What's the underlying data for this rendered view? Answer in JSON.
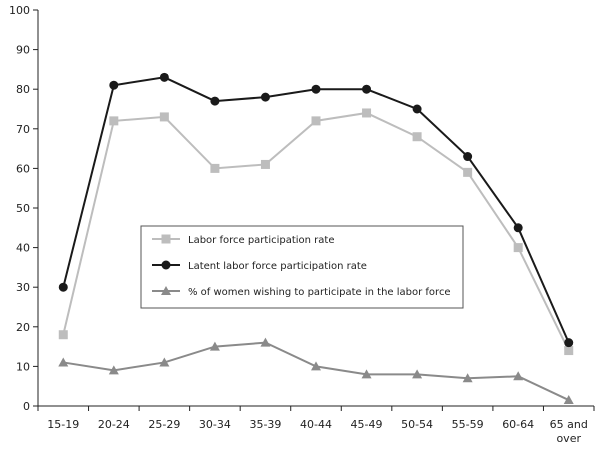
{
  "chart_data": {
    "type": "line",
    "title": "",
    "xlabel": "",
    "ylabel": "",
    "categories": [
      "15-19",
      "20-24",
      "25-29",
      "30-34",
      "35-39",
      "40-44",
      "45-49",
      "50-54",
      "55-59",
      "60-64",
      "65 and over"
    ],
    "category_lines": [
      [
        "15-19"
      ],
      [
        "20-24"
      ],
      [
        "25-29"
      ],
      [
        "30-34"
      ],
      [
        "35-39"
      ],
      [
        "40-44"
      ],
      [
        "45-49"
      ],
      [
        "50-54"
      ],
      [
        "55-59"
      ],
      [
        "60-64"
      ],
      [
        "65 and",
        "over"
      ]
    ],
    "ylim": [
      0,
      100
    ],
    "yticks": [
      0,
      10,
      20,
      30,
      40,
      50,
      60,
      70,
      80,
      90,
      100
    ],
    "ytick_labels": [
      "0",
      "10",
      "20",
      "30",
      "40",
      "50",
      "60",
      "70",
      "80",
      "90",
      "100"
    ],
    "grid": false,
    "legend_position": "center-left",
    "series": [
      {
        "name": "Labor force participation rate",
        "color": "#bdbdbd",
        "marker": "square",
        "values": [
          18,
          72,
          73,
          60,
          61,
          72,
          74,
          68,
          59,
          40,
          14
        ]
      },
      {
        "name": "Latent labor force participation rate",
        "color": "#1a1a1a",
        "marker": "circle",
        "values": [
          30,
          81,
          83,
          77,
          78,
          80,
          80,
          75,
          63,
          45,
          16
        ]
      },
      {
        "name": "% of women wishing to participate in the labor force",
        "color": "#8a8a8a",
        "marker": "triangle",
        "values": [
          11,
          9,
          11,
          15,
          16,
          10,
          8,
          8,
          7,
          7.5,
          1.5
        ]
      }
    ]
  }
}
